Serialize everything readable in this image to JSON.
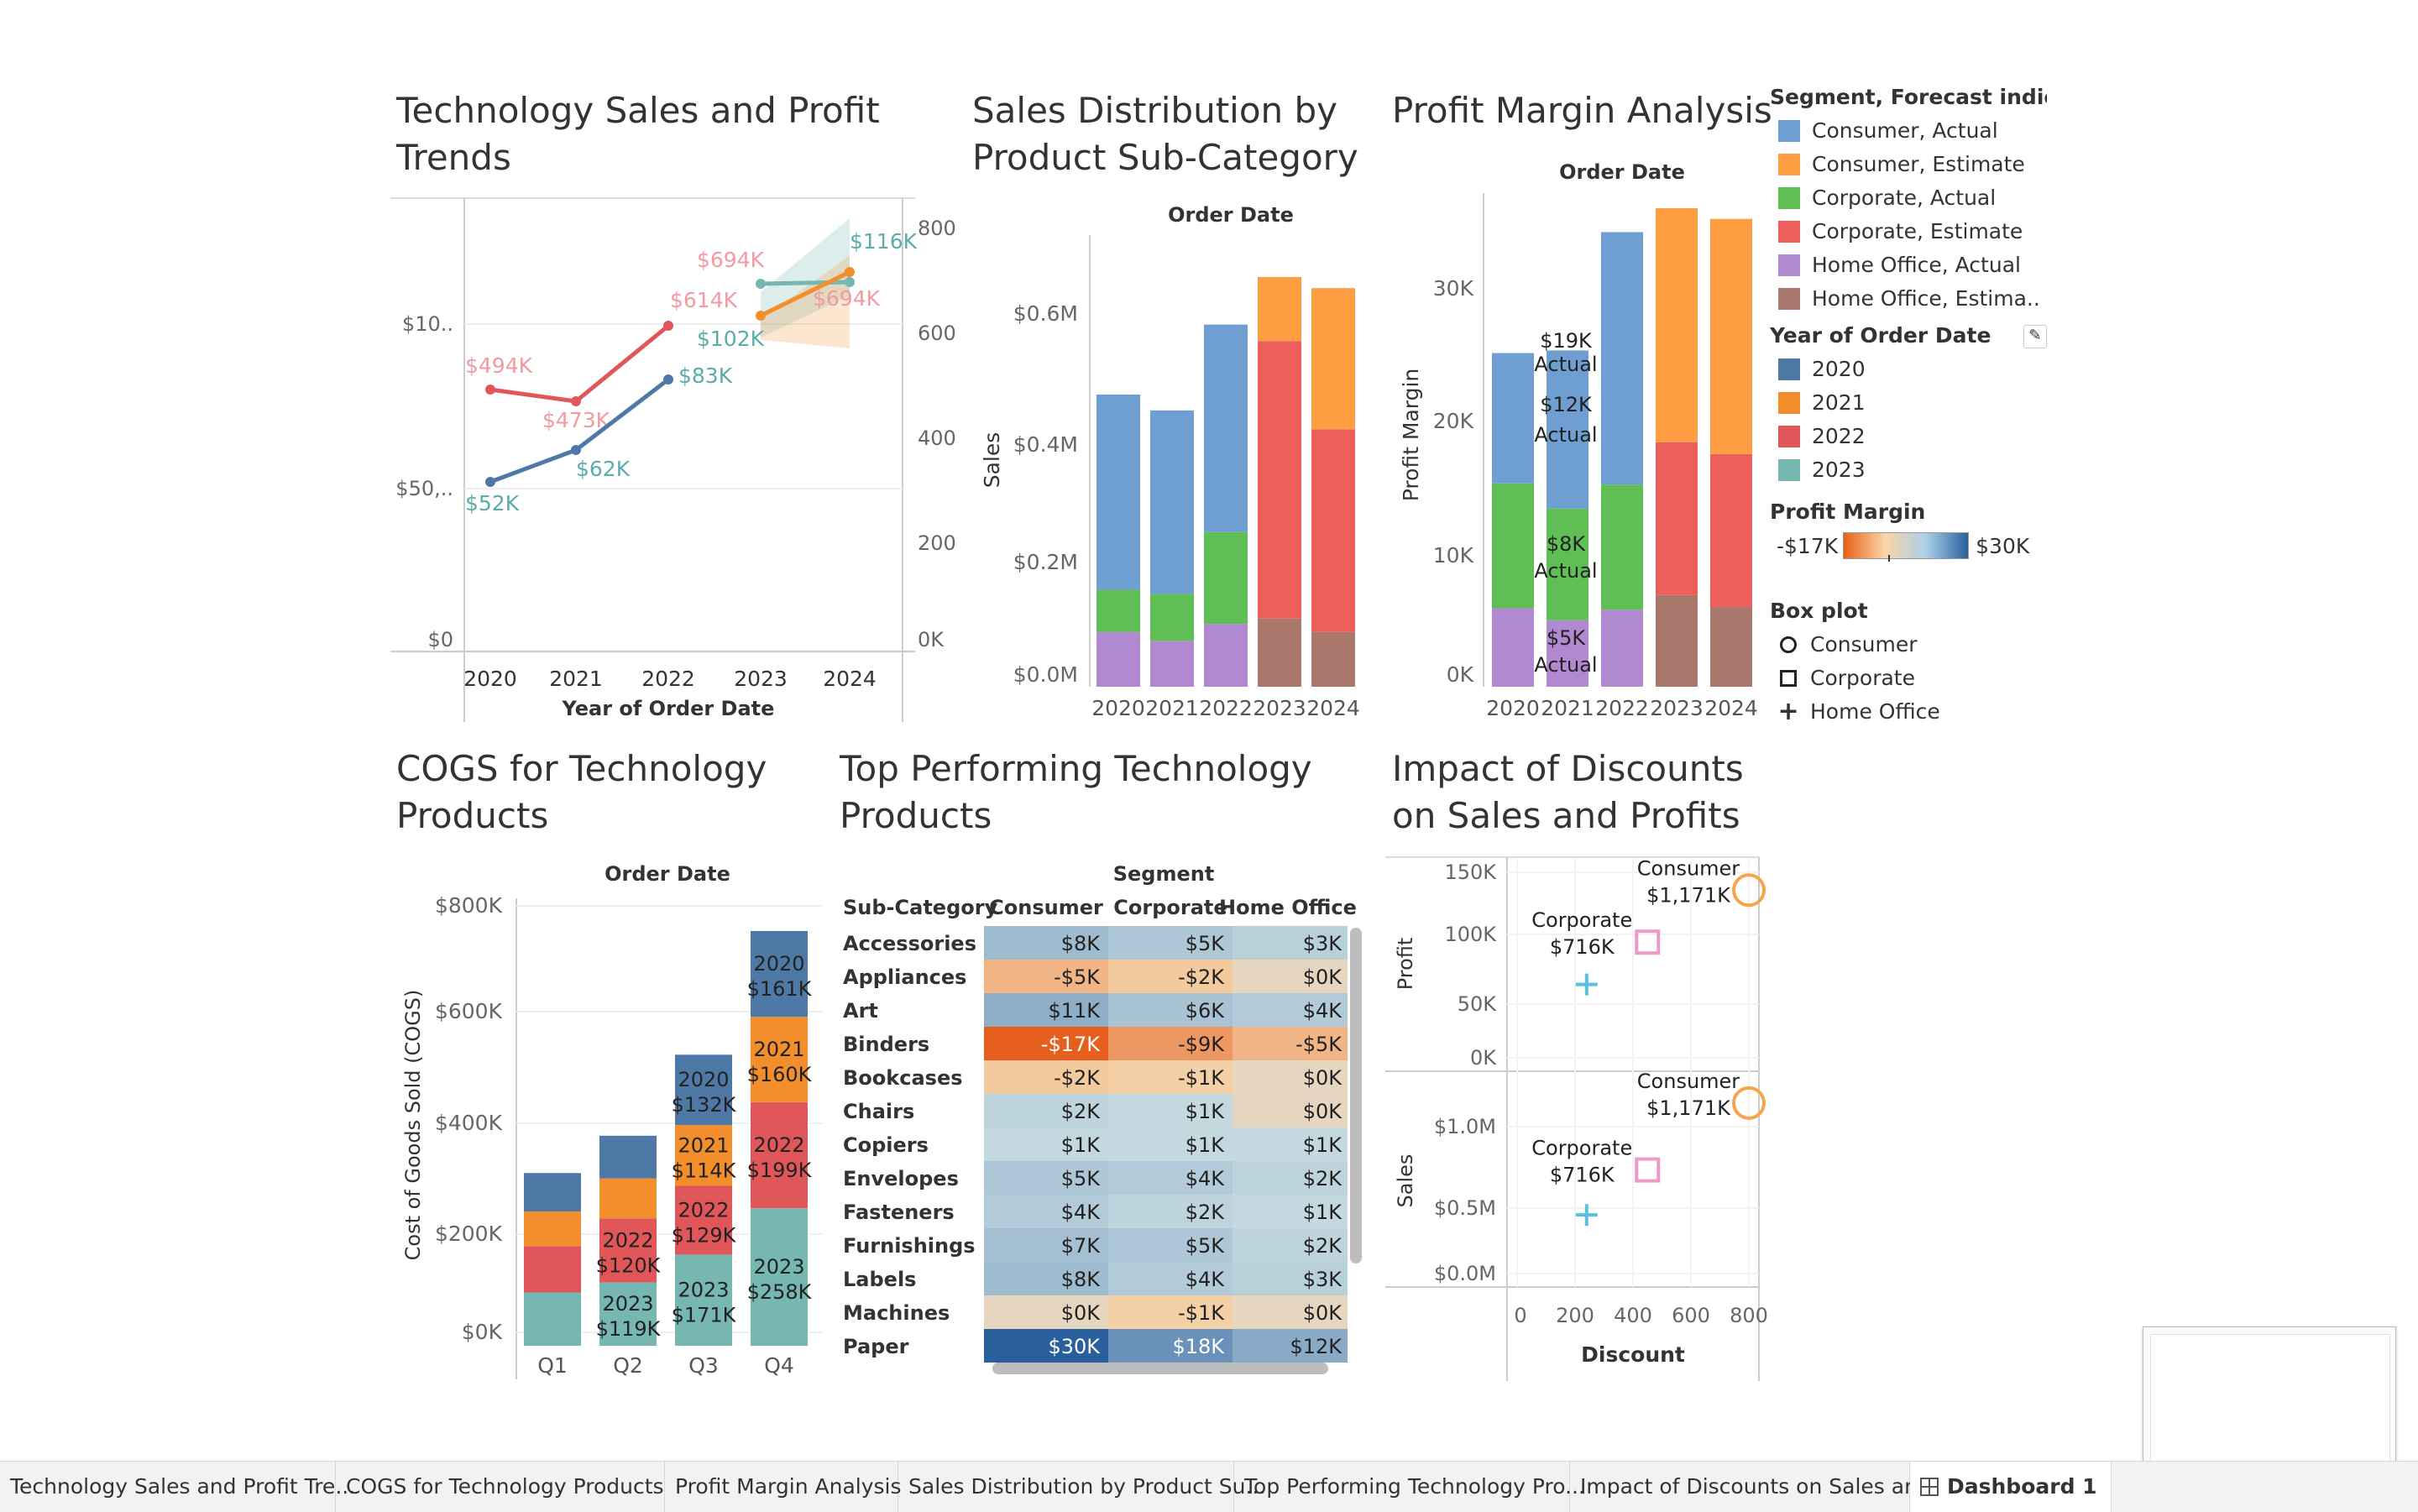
{
  "titles": {
    "trends": [
      "Technology Sales and Profit",
      "Trends"
    ],
    "distribution": [
      "Sales Distribution by",
      "Product Sub-Category"
    ],
    "margin": "Profit Margin Analysis",
    "cogs": [
      "COGS for Technology",
      "Products"
    ],
    "top": [
      "Top Performing Technology",
      "Products"
    ],
    "discount": [
      "Impact of Discounts",
      "on Sales and Profits"
    ]
  },
  "legend": {
    "segment_title": "Segment, Forecast indica..",
    "segment_items": [
      {
        "label": "Consumer, Actual",
        "color": "#6f9fd2"
      },
      {
        "label": "Consumer, Estimate",
        "color": "#ff9d42"
      },
      {
        "label": "Corporate, Actual",
        "color": "#5fbf55"
      },
      {
        "label": "Corporate, Estimate",
        "color": "#ed5f5b"
      },
      {
        "label": "Home Office, Actual",
        "color": "#b189d1"
      },
      {
        "label": "Home Office, Estima..",
        "color": "#a9776b"
      }
    ],
    "year_title": "Year of Order Date",
    "year_items": [
      {
        "label": "2020",
        "color": "#4e79a7"
      },
      {
        "label": "2021",
        "color": "#f28e2b"
      },
      {
        "label": "2022",
        "color": "#e15759"
      },
      {
        "label": "2023",
        "color": "#76b7b2"
      }
    ],
    "margin_title": "Profit Margin",
    "margin_min": "-$17K",
    "margin_max": "$30K",
    "box_title": "Box plot",
    "box_items": [
      {
        "label": "Consumer",
        "shape": "circle-icon"
      },
      {
        "label": "Corporate",
        "shape": "square-icon"
      },
      {
        "label": "Home Office",
        "shape": "plus-icon"
      }
    ]
  },
  "tabs": [
    {
      "label": "Technology Sales and Profit Tre..."
    },
    {
      "label": "COGS for Technology Products"
    },
    {
      "label": "Profit Margin Analysis"
    },
    {
      "label": "Sales Distribution by Product Su..."
    },
    {
      "label": "Top Performing Technology Pro..."
    },
    {
      "label": "Impact of Discounts on Sales an..."
    },
    {
      "label": "Dashboard 1"
    }
  ],
  "chart_data": [
    {
      "id": "trends",
      "type": "line",
      "x": [
        "2020",
        "2021",
        "2022",
        "2023",
        "2024"
      ],
      "xlabel": "Year of Order Date",
      "left_ticks": [
        "$10..",
        "$50,..",
        "$0"
      ],
      "right_ticks": [
        "800K",
        "600K",
        "400K",
        "200K",
        "0K"
      ],
      "series": [
        {
          "x": [
            "2020",
            "2021",
            "2022"
          ],
          "values": [
            494,
            473,
            614
          ],
          "color": "#e15759",
          "labels": [
            "$494K",
            "$473K",
            "$614K"
          ]
        },
        {
          "x": [
            "2020",
            "2021",
            "2022"
          ],
          "values": [
            52,
            62,
            83
          ],
          "color": "#4e79a7",
          "labels": [
            "$52K",
            "$62K",
            "$83K"
          ]
        },
        {
          "x": [
            "2023",
            "2024"
          ],
          "values": [
            102,
            116
          ],
          "color": "#76b7b2",
          "labels": [
            "$102K",
            "$116K"
          ]
        },
        {
          "x": [
            "2023",
            "2024"
          ],
          "values": [
            694,
            694
          ],
          "color": "#f28e2b",
          "labels": [
            "$694K",
            "$694K"
          ]
        }
      ]
    },
    {
      "id": "distribution",
      "type": "bar",
      "header": "Order Date",
      "ylabel": "Sales",
      "ylim": [
        0,
        0.7
      ],
      "yticks": [
        "$0.6M",
        "$0.4M",
        "$0.2M",
        "$0.0M"
      ],
      "categories": [
        "2020",
        "2021",
        "2022",
        "2023",
        "2024"
      ],
      "series": [
        {
          "name": "Home Office",
          "values": [
            0.093,
            0.078,
            0.107,
            0.116,
            0.093
          ]
        },
        {
          "name": "Corporate",
          "values": [
            0.165,
            0.158,
            0.263,
            0.588,
            0.438
          ]
        },
        {
          "name": "Consumer",
          "values": [
            0.497,
            0.47,
            0.616,
            0.697,
            0.678
          ]
        }
      ]
    },
    {
      "id": "margin",
      "type": "bar",
      "header": "Order Date",
      "ylabel": "Profit Margin",
      "ylim": [
        0,
        36000
      ],
      "yticks": [
        "30K",
        "20K",
        "10K",
        "0K"
      ],
      "categories": [
        "2020",
        "2021",
        "2022",
        "2023",
        "2024"
      ],
      "series": [
        {
          "name": "Home Office",
          "values": [
            5900,
            5000,
            5800,
            6900,
            6000
          ]
        },
        {
          "name": "Corporate",
          "values": [
            15300,
            13400,
            15200,
            18400,
            17500
          ]
        },
        {
          "name": "Consumer",
          "values": [
            25100,
            25300,
            34200,
            36000,
            35200
          ]
        }
      ],
      "annotations": [
        {
          "text": [
            "$19K",
            "Actual"
          ],
          "year": "2021",
          "value": 24000
        },
        {
          "text": [
            "$12K",
            "Actual"
          ],
          "year": "2021",
          "value": 18500
        },
        {
          "text": [
            "$8K",
            "Actual"
          ],
          "year": "2021",
          "value": 8500
        },
        {
          "text": [
            "$5K",
            "Actual"
          ],
          "year": "2021",
          "value": 2800
        }
      ]
    },
    {
      "id": "cogs",
      "type": "bar",
      "header": "Order Date",
      "ylabel": "Cost of Goods Sold (COGS)",
      "yticks": [
        "$800K",
        "$600K",
        "$400K",
        "$200K",
        "$0K"
      ],
      "ylim": [
        0,
        800
      ],
      "categories": [
        "Q1",
        "Q2",
        "Q3",
        "Q4"
      ],
      "series": [
        {
          "name": "2023",
          "values": [
            100,
            119,
            171,
            258
          ],
          "color": "#76b7b2"
        },
        {
          "name": "2022",
          "values": [
            87,
            120,
            129,
            199
          ],
          "color": "#e15759"
        },
        {
          "name": "2021",
          "values": [
            65,
            75,
            114,
            160
          ],
          "color": "#f28e2b"
        },
        {
          "name": "2020",
          "values": [
            72,
            80,
            132,
            161
          ],
          "color": "#4e79a7"
        }
      ],
      "labels": {
        "Q2": [
          [
            "2022",
            "$120K"
          ],
          [
            "2023",
            "$119K"
          ]
        ],
        "Q3": [
          [
            "2020",
            "$132K"
          ],
          [
            "2021",
            "$114K"
          ],
          [
            "2022",
            "$129K"
          ],
          [
            "2023",
            "$171K"
          ]
        ],
        "Q4": [
          [
            "2020",
            "$161K"
          ],
          [
            "2021",
            "$160K"
          ],
          [
            "2022",
            "$199K"
          ],
          [
            "2023",
            "$258K"
          ]
        ]
      }
    },
    {
      "id": "top",
      "type": "heatmap",
      "header": "Segment",
      "columns": [
        "Sub-Category",
        "Consumer",
        "Corporate",
        "Home Office"
      ],
      "rows": [
        [
          "Accessories",
          "$8K",
          "$5K",
          "$3K"
        ],
        [
          "Appliances",
          "-$5K",
          "-$2K",
          "$0K"
        ],
        [
          "Art",
          "$11K",
          "$6K",
          "$4K"
        ],
        [
          "Binders",
          "-$17K",
          "-$9K",
          "-$5K"
        ],
        [
          "Bookcases",
          "-$2K",
          "-$1K",
          "$0K"
        ],
        [
          "Chairs",
          "$2K",
          "$1K",
          "$0K"
        ],
        [
          "Copiers",
          "$1K",
          "$1K",
          "$1K"
        ],
        [
          "Envelopes",
          "$5K",
          "$4K",
          "$2K"
        ],
        [
          "Fasteners",
          "$4K",
          "$2K",
          "$1K"
        ],
        [
          "Furnishings",
          "$7K",
          "$5K",
          "$2K"
        ],
        [
          "Labels",
          "$8K",
          "$4K",
          "$3K"
        ],
        [
          "Machines",
          "$0K",
          "-$1K",
          "$0K"
        ],
        [
          "Paper",
          "$30K",
          "$18K",
          "$12K"
        ]
      ],
      "values": [
        [
          8,
          5,
          3
        ],
        [
          -5,
          -2,
          0
        ],
        [
          11,
          6,
          4
        ],
        [
          -17,
          -9,
          -5
        ],
        [
          -2,
          -1,
          0
        ],
        [
          2,
          1,
          0
        ],
        [
          1,
          1,
          1
        ],
        [
          5,
          4,
          2
        ],
        [
          4,
          2,
          1
        ],
        [
          7,
          5,
          2
        ],
        [
          8,
          4,
          3
        ],
        [
          0,
          -1,
          0
        ],
        [
          30,
          18,
          12
        ]
      ]
    },
    {
      "id": "discount",
      "type": "scatter",
      "xlabel": "Discount",
      "xticks": [
        "0",
        "200",
        "400",
        "600",
        "800"
      ],
      "xlim": [
        0,
        900
      ],
      "panels": [
        {
          "ylabel": "Profit",
          "yticks": [
            "150K",
            "100K",
            "50K",
            "0K"
          ],
          "ylim": [
            0,
            150
          ],
          "points": [
            {
              "segment": "Consumer",
              "shape": "circle",
              "x": 800,
              "y": 138,
              "label": [
                "Consumer",
                "$1,171K"
              ]
            },
            {
              "segment": "Corporate",
              "shape": "square",
              "x": 450,
              "y": 95,
              "label": [
                "Corporate",
                "$716K"
              ]
            },
            {
              "segment": "Home Office",
              "shape": "plus",
              "x": 240,
              "y": 60,
              "label": []
            }
          ]
        },
        {
          "ylabel": "Sales",
          "yticks": [
            "$1.0M",
            "$0.5M",
            "$0.0M"
          ],
          "ylim": [
            0,
            1.25
          ],
          "points": [
            {
              "segment": "Consumer",
              "shape": "circle",
              "x": 800,
              "y": 1.171,
              "label": [
                "Consumer",
                "$1,171K"
              ]
            },
            {
              "segment": "Corporate",
              "shape": "square",
              "x": 450,
              "y": 0.716,
              "label": [
                "Corporate",
                "$716K"
              ]
            },
            {
              "segment": "Home Office",
              "shape": "plus",
              "x": 240,
              "y": 0.41,
              "label": []
            }
          ]
        }
      ]
    }
  ]
}
